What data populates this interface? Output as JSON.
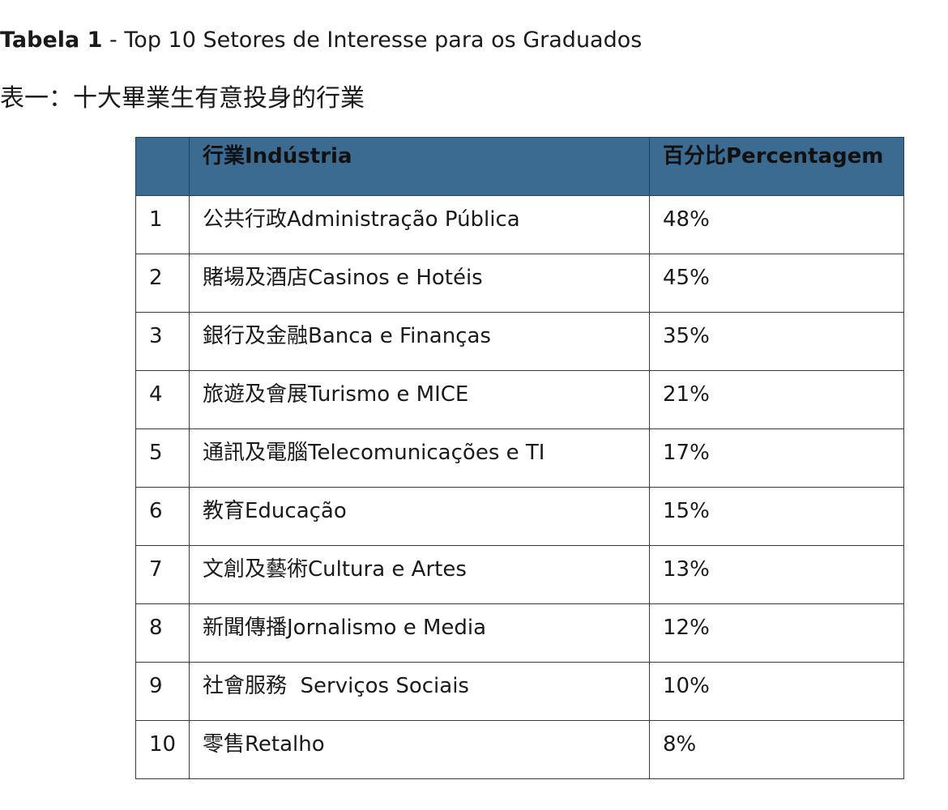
{
  "caption": {
    "pt_label": "Tabela 1",
    "pt_sep": " - ",
    "pt_title": "Top 10 Setores de Interesse para os Graduados",
    "zh": "表一：十大畢業生有意投身的行業"
  },
  "table": {
    "headers": {
      "rank": "",
      "industry": "行業Indústria",
      "percentage": "百分比Percentagem"
    },
    "rows": [
      {
        "rank": "1",
        "industry": "公共行政Administração Pública",
        "percentage": "48%"
      },
      {
        "rank": "2",
        "industry": "賭場及酒店Casinos e Hotéis",
        "percentage": "45%"
      },
      {
        "rank": "3",
        "industry": "銀行及金融Banca e Finanças",
        "percentage": "35%"
      },
      {
        "rank": "4",
        "industry": "旅遊及會展Turismo e MICE",
        "percentage": "21%"
      },
      {
        "rank": "5",
        "industry": "通訊及電腦Telecomunicações e TI",
        "percentage": "17%"
      },
      {
        "rank": "6",
        "industry": "教育Educação",
        "percentage": "15%"
      },
      {
        "rank": "7",
        "industry": "文創及藝術Cultura e Artes",
        "percentage": "13%"
      },
      {
        "rank": "8",
        "industry": "新聞傳播Jornalismo e Media",
        "percentage": "12%"
      },
      {
        "rank": "9",
        "industry": "社會服務  Serviços Sociais",
        "percentage": "10%"
      },
      {
        "rank": "10",
        "industry": "零售Retalho",
        "percentage": "8%"
      }
    ]
  },
  "colors": {
    "header_background": "#3c6b91",
    "border": "#3a3a3a",
    "text": "#1a1a1a"
  }
}
